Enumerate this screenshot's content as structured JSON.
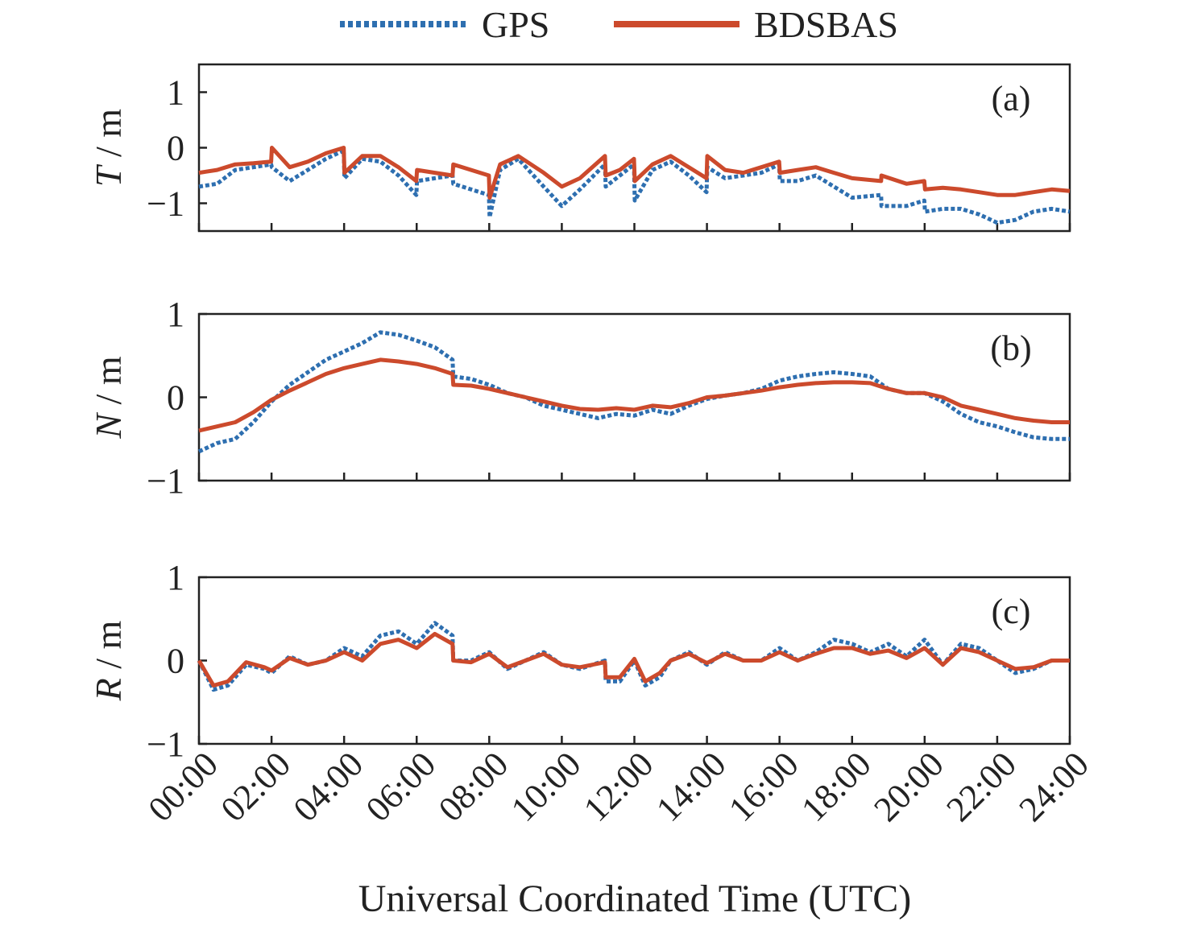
{
  "chart_data": [
    {
      "type": "line",
      "panel_label": "(a)",
      "ylabel_var": "T",
      "ylabel_unit": " / m",
      "ylim": [
        -1.5,
        1.5
      ],
      "yticks": [
        1,
        0,
        -1
      ],
      "ytick_labels": [
        "1",
        "0",
        "−1"
      ],
      "xlim": [
        0,
        24
      ],
      "series": [
        {
          "name": "GPS",
          "x": [
            0,
            0.5,
            1,
            1.5,
            1.99,
            2.01,
            2.5,
            3,
            3.5,
            3.99,
            4.01,
            4.5,
            5,
            5.5,
            5.99,
            6.01,
            6.5,
            6.99,
            7.01,
            7.5,
            7.99,
            8.01,
            8.3,
            8.8,
            9.5,
            10,
            10.5,
            11.19,
            11.21,
            11.6,
            11.99,
            12.01,
            12.5,
            13,
            13.5,
            13.99,
            14.01,
            14.5,
            15,
            15.5,
            15.99,
            16.01,
            16.5,
            17,
            17.5,
            18,
            18.8,
            18.81,
            19.5,
            19.99,
            20.01,
            20.5,
            21,
            21.5,
            22,
            22.5,
            23,
            23.5,
            24
          ],
          "values": [
            -0.7,
            -0.65,
            -0.4,
            -0.35,
            -0.3,
            -0.35,
            -0.6,
            -0.4,
            -0.2,
            -0.05,
            -0.55,
            -0.2,
            -0.25,
            -0.5,
            -0.85,
            -0.6,
            -0.55,
            -0.5,
            -0.65,
            -0.75,
            -0.85,
            -1.25,
            -0.4,
            -0.2,
            -0.7,
            -1.05,
            -0.75,
            -0.3,
            -0.7,
            -0.5,
            -0.3,
            -0.95,
            -0.4,
            -0.25,
            -0.5,
            -0.8,
            -0.35,
            -0.55,
            -0.5,
            -0.45,
            -0.3,
            -0.6,
            -0.6,
            -0.5,
            -0.7,
            -0.9,
            -0.85,
            -1.05,
            -1.05,
            -0.95,
            -1.15,
            -1.1,
            -1.1,
            -1.2,
            -1.35,
            -1.3,
            -1.15,
            -1.1,
            -1.15
          ]
        },
        {
          "name": "BDSBAS",
          "x": [
            0,
            0.5,
            1,
            1.5,
            1.99,
            2.01,
            2.5,
            3,
            3.5,
            3.99,
            4.01,
            4.5,
            5,
            5.5,
            5.99,
            6.01,
            6.5,
            6.99,
            7.01,
            7.5,
            7.99,
            8.01,
            8.3,
            8.8,
            9.5,
            10,
            10.5,
            11.19,
            11.21,
            11.6,
            11.99,
            12.01,
            12.5,
            13,
            13.5,
            13.99,
            14.01,
            14.5,
            15,
            15.5,
            15.99,
            16.01,
            16.5,
            17,
            17.5,
            18,
            18.8,
            18.81,
            19.5,
            19.99,
            20.01,
            20.5,
            21,
            21.5,
            22,
            22.5,
            23,
            23.5,
            24
          ],
          "values": [
            -0.45,
            -0.4,
            -0.3,
            -0.28,
            -0.25,
            0.0,
            -0.35,
            -0.25,
            -0.1,
            0.0,
            -0.45,
            -0.15,
            -0.15,
            -0.35,
            -0.6,
            -0.4,
            -0.45,
            -0.5,
            -0.3,
            -0.4,
            -0.5,
            -0.9,
            -0.3,
            -0.15,
            -0.45,
            -0.7,
            -0.55,
            -0.15,
            -0.5,
            -0.4,
            -0.2,
            -0.6,
            -0.3,
            -0.15,
            -0.35,
            -0.55,
            -0.15,
            -0.4,
            -0.45,
            -0.35,
            -0.25,
            -0.45,
            -0.4,
            -0.35,
            -0.45,
            -0.55,
            -0.6,
            -0.5,
            -0.65,
            -0.6,
            -0.75,
            -0.72,
            -0.75,
            -0.8,
            -0.85,
            -0.85,
            -0.8,
            -0.75,
            -0.78
          ]
        }
      ]
    },
    {
      "type": "line",
      "panel_label": "(b)",
      "ylabel_var": "N",
      "ylabel_unit": " / m",
      "ylim": [
        -1,
        1
      ],
      "yticks": [
        1,
        0,
        -1
      ],
      "ytick_labels": [
        "1",
        "0",
        "−1"
      ],
      "xlim": [
        0,
        24
      ],
      "series": [
        {
          "name": "GPS",
          "x": [
            0,
            0.5,
            1,
            1.5,
            2,
            2.5,
            3,
            3.5,
            4,
            4.5,
            5,
            5.5,
            6,
            6.5,
            6.99,
            7.01,
            7.5,
            8,
            8.5,
            9,
            9.5,
            10,
            10.5,
            11,
            11.5,
            12,
            12.5,
            13,
            13.5,
            14,
            14.5,
            15,
            15.5,
            16,
            16.5,
            17,
            17.5,
            18,
            18.5,
            19,
            19.5,
            20,
            20.5,
            21,
            21.5,
            22,
            22.5,
            23,
            23.5,
            24
          ],
          "values": [
            -0.65,
            -0.55,
            -0.5,
            -0.3,
            -0.05,
            0.15,
            0.3,
            0.45,
            0.55,
            0.65,
            0.78,
            0.75,
            0.68,
            0.6,
            0.45,
            0.25,
            0.22,
            0.15,
            0.05,
            0.0,
            -0.1,
            -0.15,
            -0.2,
            -0.25,
            -0.2,
            -0.22,
            -0.15,
            -0.2,
            -0.1,
            -0.02,
            0.02,
            0.05,
            0.1,
            0.2,
            0.25,
            0.28,
            0.3,
            0.28,
            0.25,
            0.1,
            0.05,
            0.05,
            -0.05,
            -0.2,
            -0.3,
            -0.35,
            -0.42,
            -0.48,
            -0.5,
            -0.5
          ]
        },
        {
          "name": "BDSBAS",
          "x": [
            0,
            0.5,
            1,
            1.5,
            2,
            2.5,
            3,
            3.5,
            4,
            4.5,
            5,
            5.5,
            6,
            6.5,
            6.99,
            7.01,
            7.5,
            8,
            8.5,
            9,
            9.5,
            10,
            10.5,
            11,
            11.5,
            12,
            12.5,
            13,
            13.5,
            14,
            14.5,
            15,
            15.5,
            16,
            16.5,
            17,
            17.5,
            18,
            18.5,
            19,
            19.5,
            20,
            20.5,
            21,
            21.5,
            22,
            22.5,
            23,
            23.5,
            24
          ],
          "values": [
            -0.4,
            -0.35,
            -0.3,
            -0.18,
            -0.03,
            0.08,
            0.18,
            0.28,
            0.35,
            0.4,
            0.45,
            0.43,
            0.4,
            0.35,
            0.28,
            0.15,
            0.14,
            0.1,
            0.05,
            0.0,
            -0.05,
            -0.1,
            -0.14,
            -0.15,
            -0.13,
            -0.15,
            -0.1,
            -0.12,
            -0.07,
            0.0,
            0.02,
            0.05,
            0.08,
            0.12,
            0.15,
            0.17,
            0.18,
            0.18,
            0.17,
            0.1,
            0.05,
            0.05,
            0.0,
            -0.1,
            -0.15,
            -0.2,
            -0.25,
            -0.28,
            -0.3,
            -0.3
          ]
        }
      ]
    },
    {
      "type": "line",
      "panel_label": "(c)",
      "ylabel_var": "R",
      "ylabel_unit": " / m",
      "ylim": [
        -1,
        1
      ],
      "yticks": [
        1,
        0,
        -1
      ],
      "ytick_labels": [
        "1",
        "0",
        "−1"
      ],
      "xlim": [
        0,
        24
      ],
      "series": [
        {
          "name": "GPS",
          "x": [
            0,
            0.4,
            0.8,
            1.3,
            1.8,
            2.0,
            2.5,
            3.0,
            3.5,
            4.0,
            4.5,
            5.0,
            5.5,
            6.0,
            6.5,
            6.99,
            7.01,
            7.5,
            8.0,
            8.5,
            9.0,
            9.5,
            10.0,
            10.5,
            11.19,
            11.21,
            11.6,
            12.0,
            12.3,
            12.7,
            13.0,
            13.5,
            14.0,
            14.5,
            15.0,
            15.5,
            16.0,
            16.5,
            17.0,
            17.5,
            18.0,
            18.5,
            19.0,
            19.5,
            20.0,
            20.5,
            21.0,
            21.5,
            22.0,
            22.5,
            23.0,
            23.5,
            24.0
          ],
          "values": [
            0.0,
            -0.35,
            -0.3,
            -0.05,
            -0.1,
            -0.15,
            0.05,
            -0.05,
            0.0,
            0.15,
            0.05,
            0.3,
            0.35,
            0.2,
            0.45,
            0.3,
            0.0,
            0.0,
            0.1,
            -0.1,
            0.0,
            0.1,
            -0.05,
            -0.1,
            0.0,
            -0.25,
            -0.25,
            0.0,
            -0.3,
            -0.2,
            0.0,
            0.1,
            -0.05,
            0.1,
            0.0,
            0.0,
            0.15,
            0.0,
            0.1,
            0.25,
            0.2,
            0.1,
            0.2,
            0.05,
            0.25,
            -0.05,
            0.2,
            0.15,
            0.0,
            -0.15,
            -0.1,
            0.0,
            0.0
          ]
        },
        {
          "name": "BDSBAS",
          "x": [
            0,
            0.4,
            0.8,
            1.3,
            1.8,
            2.0,
            2.5,
            3.0,
            3.5,
            4.0,
            4.5,
            5.0,
            5.5,
            6.0,
            6.5,
            6.99,
            7.01,
            7.5,
            8.0,
            8.5,
            9.0,
            9.5,
            10.0,
            10.5,
            11.19,
            11.21,
            11.6,
            12.0,
            12.3,
            12.7,
            13.0,
            13.5,
            14.0,
            14.5,
            15.0,
            15.5,
            16.0,
            16.5,
            17.0,
            17.5,
            18.0,
            18.5,
            19.0,
            19.5,
            20.0,
            20.5,
            21.0,
            21.5,
            22.0,
            22.5,
            23.0,
            23.5,
            24.0
          ],
          "values": [
            0.0,
            -0.3,
            -0.25,
            -0.02,
            -0.08,
            -0.12,
            0.03,
            -0.05,
            0.0,
            0.1,
            0.0,
            0.2,
            0.25,
            0.15,
            0.32,
            0.2,
            0.0,
            -0.02,
            0.08,
            -0.08,
            0.0,
            0.08,
            -0.05,
            -0.08,
            -0.02,
            -0.2,
            -0.2,
            0.02,
            -0.25,
            -0.15,
            0.0,
            0.08,
            -0.03,
            0.08,
            0.0,
            0.0,
            0.1,
            0.0,
            0.08,
            0.15,
            0.15,
            0.08,
            0.12,
            0.03,
            0.15,
            -0.05,
            0.15,
            0.1,
            0.0,
            -0.1,
            -0.08,
            0.0,
            0.0
          ]
        }
      ]
    }
  ],
  "legend": {
    "placement": "top-center",
    "entries": [
      {
        "label": "GPS",
        "color": "#2e6fb0",
        "style": "dotted"
      },
      {
        "label": "BDSBAS",
        "color": "#cc4a2c",
        "style": "solid"
      }
    ]
  },
  "x_tick_labels": [
    "00:00",
    "02:00",
    "04:00",
    "06:00",
    "08:00",
    "10:00",
    "12:00",
    "14:00",
    "16:00",
    "18:00",
    "20:00",
    "22:00",
    "24:00"
  ],
  "xlabel": "Universal Coordinated Time (UTC)"
}
